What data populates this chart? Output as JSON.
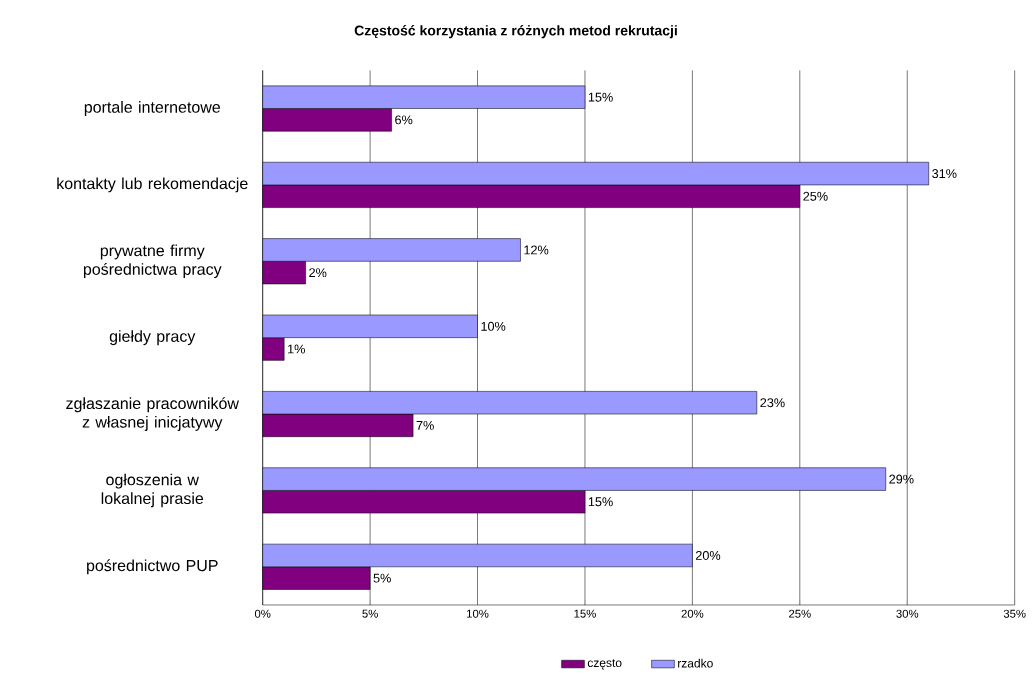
{
  "chart_data": {
    "type": "bar",
    "orientation": "horizontal",
    "title": "Częstość korzystania z różnych metod rekrutacji",
    "categories": [
      "portale internetowe",
      "kontakty lub rekomendacje",
      "prywatne firmy pośrednictwa pracy",
      "giełdy pracy",
      "zgłaszanie pracowników z własnej inicjatywy",
      "ogłoszenia w lokalnej prasie",
      "pośrednictwo PUP"
    ],
    "series": [
      {
        "name": "często",
        "color": "#800080",
        "values": [
          6,
          25,
          2,
          1,
          7,
          15,
          5
        ],
        "value_labels": [
          "6%",
          "25%",
          "2%",
          "1%",
          "7%",
          "15%",
          "5%"
        ]
      },
      {
        "name": "rzadko",
        "color": "#9999ff",
        "values": [
          15,
          31,
          12,
          10,
          23,
          29,
          20
        ],
        "value_labels": [
          "15%",
          "31%",
          "12%",
          "10%",
          "23%",
          "29%",
          "20%"
        ]
      }
    ],
    "xlim": [
      0,
      35
    ],
    "xticks": [
      {
        "value": 0,
        "label": "0%"
      },
      {
        "value": 5,
        "label": "5%"
      },
      {
        "value": 10,
        "label": "10%"
      },
      {
        "value": 15,
        "label": "15%"
      },
      {
        "value": 20,
        "label": "20%"
      },
      {
        "value": 25,
        "label": "25%"
      },
      {
        "value": 30,
        "label": "30%"
      },
      {
        "value": 35,
        "label": "35%"
      }
    ],
    "grid": "x",
    "legend": "bottom"
  }
}
